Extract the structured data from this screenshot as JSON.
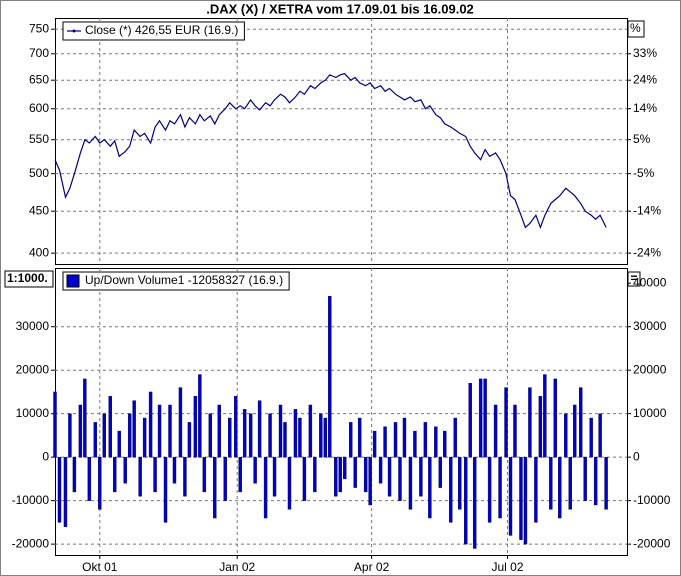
{
  "chart_data": [
    {
      "type": "line",
      "title": ".DAX (X) / XETRA vom 17.09.01 bis 16.09.02",
      "log_scale": true,
      "grid": true,
      "xlim": [
        -16,
        367
      ],
      "ylim": [
        388,
        774
      ],
      "yticks": [
        400,
        450,
        500,
        550,
        600,
        650,
        700,
        750
      ],
      "y2lim": [
        388,
        774
      ],
      "y2_label": "%",
      "y2ticks": [
        {
          "value": 400,
          "label": "-24%"
        },
        {
          "value": 450,
          "label": "-14%"
        },
        {
          "value": 500,
          "label": "-5%"
        },
        {
          "value": 550,
          "label": "5%"
        },
        {
          "value": 600,
          "label": "14%"
        },
        {
          "value": 650,
          "label": "24%"
        },
        {
          "value": 700,
          "label": "33%"
        }
      ],
      "x": [
        -16,
        -13,
        -9,
        -6,
        -3,
        1,
        4,
        7,
        11,
        14,
        17,
        21,
        24,
        27,
        31,
        34,
        37,
        41,
        44,
        48,
        51,
        54,
        58,
        61,
        64,
        68,
        71,
        74,
        78,
        81,
        84,
        88,
        91,
        94,
        98,
        101,
        105,
        108,
        111,
        115,
        118,
        121,
        125,
        128,
        131,
        135,
        138,
        141,
        145,
        148,
        151,
        155,
        158,
        162,
        165,
        168,
        172,
        175,
        178,
        182,
        185,
        188,
        192,
        195,
        198,
        202,
        205,
        208,
        212,
        215,
        218,
        222,
        225,
        229,
        232,
        235,
        239,
        242,
        245,
        249,
        252,
        255,
        259,
        262,
        265,
        269,
        272,
        275,
        279,
        282,
        286,
        289,
        292,
        296,
        299,
        302,
        306,
        309,
        312,
        316,
        319,
        322,
        326,
        329,
        332,
        336,
        339,
        343,
        346,
        349,
        353
      ],
      "series": [
        {
          "name": "Close (*) 426,55 EUR (16.9.)",
          "color": "#000080",
          "values": [
            520,
            505,
            468,
            480,
            500,
            530,
            550,
            545,
            555,
            545,
            550,
            540,
            548,
            525,
            532,
            540,
            565,
            555,
            560,
            545,
            570,
            580,
            565,
            580,
            575,
            590,
            570,
            585,
            575,
            590,
            580,
            588,
            575,
            590,
            600,
            610,
            600,
            605,
            600,
            615,
            605,
            598,
            610,
            605,
            615,
            625,
            620,
            610,
            620,
            630,
            625,
            640,
            635,
            645,
            650,
            660,
            655,
            660,
            662,
            650,
            655,
            645,
            640,
            645,
            635,
            640,
            630,
            635,
            625,
            620,
            615,
            620,
            612,
            615,
            600,
            605,
            590,
            585,
            575,
            570,
            565,
            560,
            555,
            540,
            530,
            520,
            535,
            525,
            530,
            520,
            500,
            470,
            465,
            445,
            430,
            435,
            445,
            430,
            445,
            460,
            465,
            470,
            480,
            475,
            470,
            460,
            450,
            445,
            440,
            445,
            430
          ]
        }
      ]
    },
    {
      "type": "bar",
      "annotation": "1:1000.",
      "grid": true,
      "xlim": [
        -16,
        367
      ],
      "xticks": [
        {
          "value": 14,
          "label": "Okt 01"
        },
        {
          "value": 106,
          "label": "Jan 02"
        },
        {
          "value": 196,
          "label": "Apr 02"
        },
        {
          "value": 287,
          "label": "Jul 02"
        }
      ],
      "ylim": [
        -22500,
        43500
      ],
      "yticks": [
        -20000,
        -10000,
        0,
        10000,
        20000,
        30000
      ],
      "y2lim": [
        -22500,
        43500
      ],
      "y2ticks": [
        -20000,
        -10000,
        0,
        10000,
        20000,
        30000,
        40000
      ],
      "x": [
        -16,
        -13,
        -9,
        -6,
        -3,
        1,
        4,
        7,
        11,
        14,
        17,
        21,
        24,
        27,
        31,
        34,
        37,
        41,
        44,
        48,
        51,
        54,
        58,
        61,
        64,
        68,
        71,
        74,
        78,
        81,
        84,
        88,
        91,
        94,
        98,
        101,
        105,
        108,
        111,
        115,
        118,
        121,
        125,
        128,
        131,
        135,
        138,
        141,
        145,
        148,
        151,
        155,
        158,
        162,
        165,
        168,
        172,
        175,
        178,
        182,
        185,
        188,
        192,
        195,
        198,
        202,
        205,
        208,
        212,
        215,
        218,
        222,
        225,
        229,
        232,
        235,
        239,
        242,
        245,
        249,
        252,
        255,
        259,
        262,
        265,
        269,
        272,
        275,
        279,
        282,
        286,
        289,
        292,
        296,
        299,
        302,
        306,
        309,
        312,
        316,
        319,
        322,
        326,
        329,
        332,
        336,
        339,
        343,
        346,
        349,
        353
      ],
      "series": [
        {
          "name": "Up/Down Volume1 -12058327 (16.9.)",
          "color": "#0000cc",
          "values": [
            15000,
            -15000,
            -16000,
            10000,
            -8000,
            12000,
            18000,
            -10000,
            8000,
            -12000,
            10000,
            14000,
            -8000,
            6000,
            -6000,
            10000,
            13000,
            -9000,
            9000,
            15000,
            -8000,
            12000,
            -15000,
            12000,
            -6000,
            16000,
            -9000,
            8000,
            14000,
            19000,
            -8000,
            10000,
            -14000,
            12000,
            -10000,
            9000,
            14000,
            -8000,
            11000,
            10000,
            -6000,
            13000,
            -14000,
            10000,
            -9000,
            12000,
            8000,
            -12000,
            11000,
            9000,
            -10000,
            12000,
            -8000,
            10000,
            9000,
            37000,
            -9000,
            -8000,
            -5000,
            8000,
            -7000,
            9000,
            -8000,
            -11000,
            6000,
            -6000,
            7000,
            -9000,
            8000,
            -10000,
            9000,
            -12000,
            6000,
            -9000,
            8000,
            -14000,
            7000,
            -7000,
            6000,
            -15000,
            9000,
            -12000,
            -20000,
            17000,
            -21000,
            18000,
            18000,
            -15000,
            12000,
            -14000,
            16000,
            -18000,
            12000,
            -19000,
            -20000,
            16000,
            -15000,
            14000,
            19000,
            -12000,
            18000,
            -14000,
            10000,
            -12000,
            12000,
            16000,
            -10000,
            9000,
            -11000,
            10000,
            -12000
          ]
        }
      ]
    }
  ]
}
